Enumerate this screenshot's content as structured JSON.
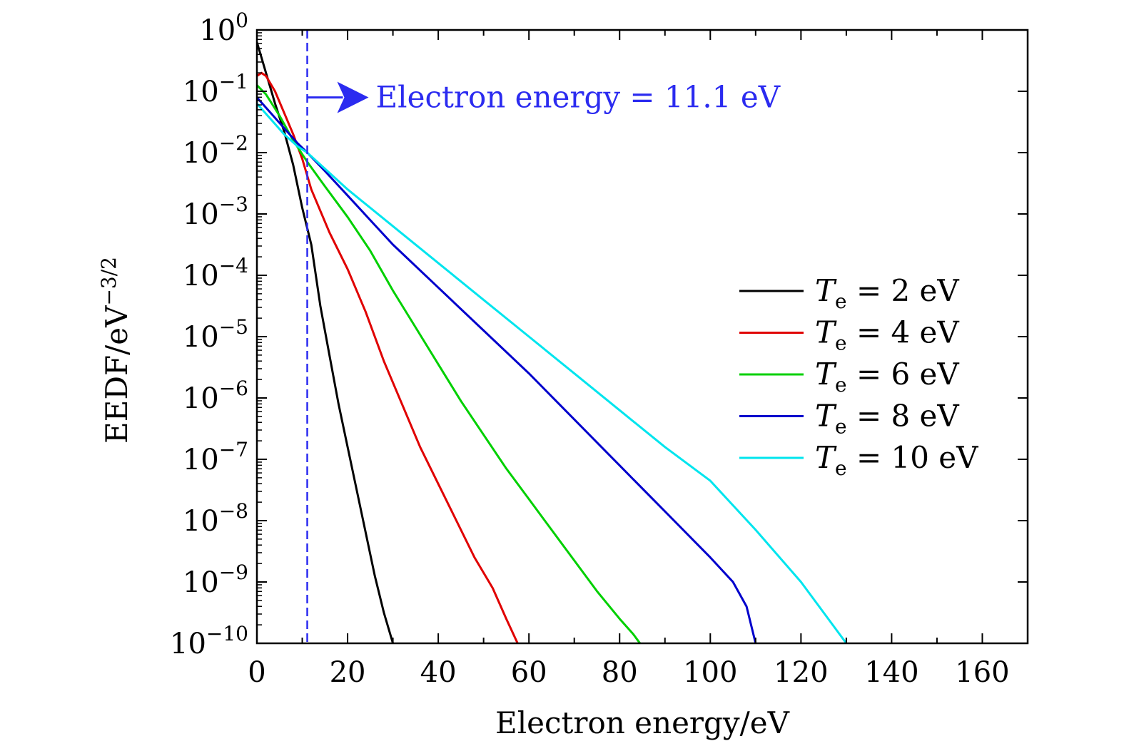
{
  "chart_data": {
    "type": "line",
    "title": "",
    "xlabel": "Electron energy/eV",
    "ylabel": "EEDF/eV",
    "ylabel_exponent": "−3/2",
    "xlim": [
      0,
      170
    ],
    "ylim_log10": [
      -10,
      0
    ],
    "yscale": "log",
    "grid": false,
    "legend_position": "right",
    "x_ticks": [
      0,
      20,
      40,
      60,
      80,
      100,
      120,
      140,
      160
    ],
    "x_tick_labels": [
      "0",
      "20",
      "40",
      "60",
      "80",
      "100",
      "120",
      "140",
      "160"
    ],
    "y_tick_base": "10",
    "y_ticks_log10": [
      0,
      -1,
      -2,
      -3,
      -4,
      -5,
      -6,
      -7,
      -8,
      -9,
      -10
    ],
    "y_tick_exponents": [
      "0",
      "−1",
      "−2",
      "−3",
      "−4",
      "−5",
      "−6",
      "−7",
      "−8",
      "−9",
      "−10"
    ],
    "annotation": {
      "x": 11.1,
      "text": "Electron energy = 11.1 eV",
      "color": "#2b2bf0",
      "arrow_y_log10": -1.1
    },
    "series": [
      {
        "name": "T_e = 2 eV",
        "legend_sym": "T",
        "legend_sub": "e",
        "legend_rest": " = 2 eV",
        "color": "#000000",
        "x": [
          0,
          1,
          2,
          3,
          4,
          6,
          8,
          10,
          12,
          14,
          16,
          18,
          20,
          22,
          24,
          26,
          28,
          30
        ],
        "log10_y": [
          -0.2,
          -0.45,
          -0.7,
          -0.95,
          -1.2,
          -1.65,
          -2.2,
          -2.9,
          -3.5,
          -4.5,
          -5.3,
          -6.1,
          -6.8,
          -7.5,
          -8.2,
          -8.9,
          -9.5,
          -10.0
        ]
      },
      {
        "name": "T_e = 4 eV",
        "legend_sym": "T",
        "legend_sub": "e",
        "legend_rest": " = 4 eV",
        "color": "#e00000",
        "x": [
          0,
          1,
          2,
          4,
          6,
          8,
          10,
          12,
          16,
          20,
          24,
          28,
          32,
          36,
          40,
          44,
          48,
          52,
          55,
          57.5
        ],
        "log10_y": [
          -0.75,
          -0.7,
          -0.75,
          -1.0,
          -1.35,
          -1.7,
          -2.1,
          -2.6,
          -3.3,
          -3.9,
          -4.6,
          -5.4,
          -6.1,
          -6.8,
          -7.4,
          -8.0,
          -8.6,
          -9.1,
          -9.6,
          -10.0
        ]
      },
      {
        "name": "T_e = 6 eV",
        "legend_sym": "T",
        "legend_sub": "e",
        "legend_rest": " = 6 eV",
        "color": "#00d000",
        "x": [
          0,
          2,
          5,
          8,
          11.1,
          15,
          20,
          25,
          30,
          35,
          40,
          45,
          50,
          55,
          60,
          65,
          70,
          75,
          80,
          83,
          84.5
        ],
        "log10_y": [
          -0.9,
          -1.05,
          -1.4,
          -1.8,
          -2.15,
          -2.55,
          -3.05,
          -3.6,
          -4.25,
          -4.85,
          -5.45,
          -6.05,
          -6.6,
          -7.15,
          -7.65,
          -8.15,
          -8.65,
          -9.15,
          -9.6,
          -9.85,
          -10.0
        ]
      },
      {
        "name": "T_e = 8 eV",
        "legend_sym": "T",
        "legend_sub": "e",
        "legend_rest": " = 8 eV",
        "color": "#0000cc",
        "x": [
          0,
          3,
          6,
          9,
          11.1,
          15,
          20,
          25,
          30,
          40,
          50,
          60,
          70,
          80,
          90,
          100,
          105,
          108,
          110
        ],
        "log10_y": [
          -1.1,
          -1.35,
          -1.6,
          -1.85,
          -2.0,
          -2.3,
          -2.7,
          -3.1,
          -3.5,
          -4.2,
          -4.9,
          -5.6,
          -6.35,
          -7.1,
          -7.85,
          -8.6,
          -9.0,
          -9.4,
          -10.0
        ]
      },
      {
        "name": "T_e = 10 eV",
        "legend_sym": "T",
        "legend_sub": "e",
        "legend_rest": " = 10 eV",
        "color": "#00e5ee",
        "x": [
          0,
          3,
          6,
          9,
          11.1,
          20,
          30,
          40,
          50,
          60,
          70,
          80,
          90,
          100,
          110,
          120,
          130
        ],
        "log10_y": [
          -1.2,
          -1.45,
          -1.7,
          -1.9,
          -2.0,
          -2.6,
          -3.2,
          -3.8,
          -4.4,
          -5.0,
          -5.6,
          -6.2,
          -6.8,
          -7.35,
          -8.15,
          -9.0,
          -10.0
        ]
      }
    ]
  }
}
